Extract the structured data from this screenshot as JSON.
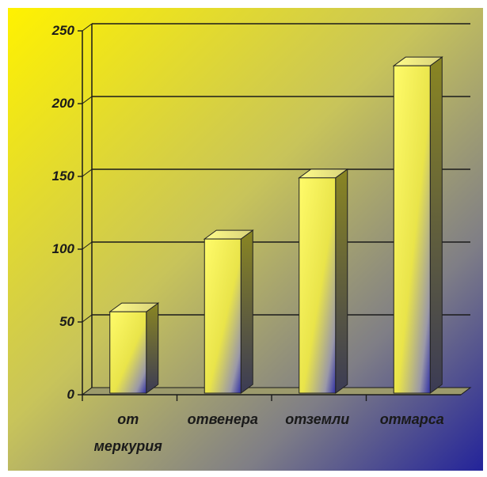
{
  "chart_data": {
    "type": "bar",
    "title": "",
    "xlabel": "",
    "ylabel": "",
    "categories": [
      [
        "от",
        "меркурия"
      ],
      [
        "отвенера"
      ],
      [
        "отземли"
      ],
      [
        "отмарса"
      ]
    ],
    "values": [
      57,
      107,
      149,
      226
    ],
    "ylim": [
      0,
      250
    ],
    "yticks": [
      "0",
      "50",
      "100",
      "150",
      "200",
      "250"
    ],
    "grid": true,
    "legend": "none",
    "colors": {
      "background_start": "#fff200",
      "background_end": "#23239a",
      "bar_light": "#fbf64a",
      "bar_dark": "#3a3aa0",
      "grid": "#1a1a1a"
    }
  }
}
